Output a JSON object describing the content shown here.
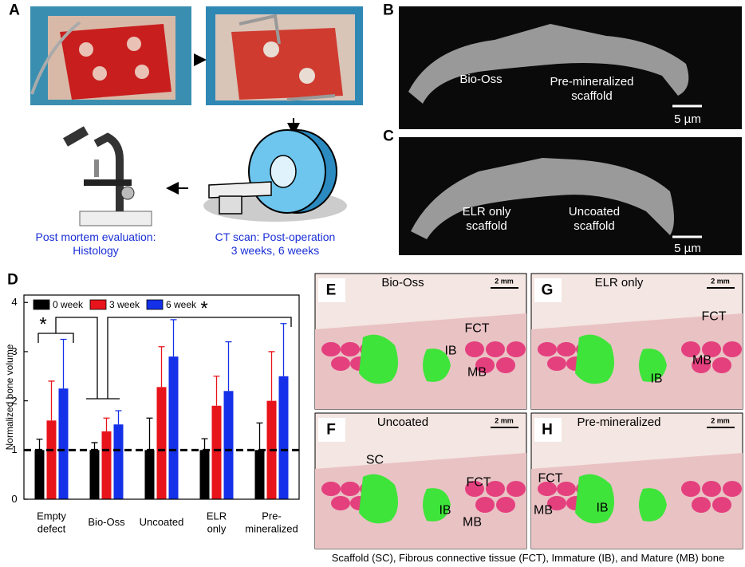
{
  "panels": {
    "A": {
      "label": "A",
      "histology_caption": "Post mortem evaluation:\nHistology",
      "ct_caption": "CT scan: Post-operation\n3 weeks, 6 weeks"
    },
    "B": {
      "label": "B",
      "left": "Bio-Oss",
      "right": "Pre-mineralized\nscaffold",
      "scale": "5 µm"
    },
    "C": {
      "label": "C",
      "left": "ELR only\nscaffold",
      "right": "Uncoated\nscaffold",
      "scale": "5 µm"
    },
    "D": {
      "label": "D"
    },
    "E": {
      "label": "E",
      "title": "Bio-Oss",
      "scale": "2 mm",
      "tags": [
        "FCT",
        "IB",
        "MB"
      ]
    },
    "G": {
      "label": "G",
      "title": "ELR only",
      "scale": "2 mm",
      "tags": [
        "FCT",
        "MB",
        "IB"
      ]
    },
    "F": {
      "label": "F",
      "title": "Uncoated",
      "scale": "2 mm",
      "tags": [
        "SC",
        "FCT",
        "IB",
        "MB"
      ]
    },
    "H": {
      "label": "H",
      "title": "Pre-mineralized",
      "scale": "2 mm",
      "tags": [
        "FCT",
        "MB",
        "IB"
      ]
    }
  },
  "chart_data": {
    "type": "bar",
    "ylabel": "Normalized bone volume",
    "categories": [
      "Empty\ndefect",
      "Bio-Oss",
      "Uncoated",
      "ELR\nonly",
      "Pre-\nmineralized"
    ],
    "series": [
      {
        "name": "0 week",
        "color": "#000000",
        "values": [
          1.0,
          1.0,
          1.0,
          1.0,
          1.0
        ],
        "errors": [
          0.22,
          0.15,
          0.65,
          0.23,
          0.55
        ]
      },
      {
        "name": "3 week",
        "color": "#e8141b",
        "values": [
          1.6,
          1.38,
          2.28,
          1.9,
          2.0
        ],
        "errors": [
          0.8,
          0.27,
          0.82,
          0.6,
          1.0
        ]
      },
      {
        "name": "6 week",
        "color": "#1430e8",
        "values": [
          2.25,
          1.52,
          2.9,
          2.2,
          2.5
        ],
        "errors": [
          1.0,
          0.28,
          0.75,
          1.0,
          1.07
        ]
      }
    ],
    "ylim": [
      0,
      4.15
    ],
    "yticks": [
      0,
      1,
      2,
      3,
      4
    ],
    "reference_line": 1,
    "annotations": [
      "*",
      "*"
    ]
  },
  "caption": "Scaffold (SC), Fibrous connective tissue (FCT), Immature (IB), and Mature (MB) bone"
}
